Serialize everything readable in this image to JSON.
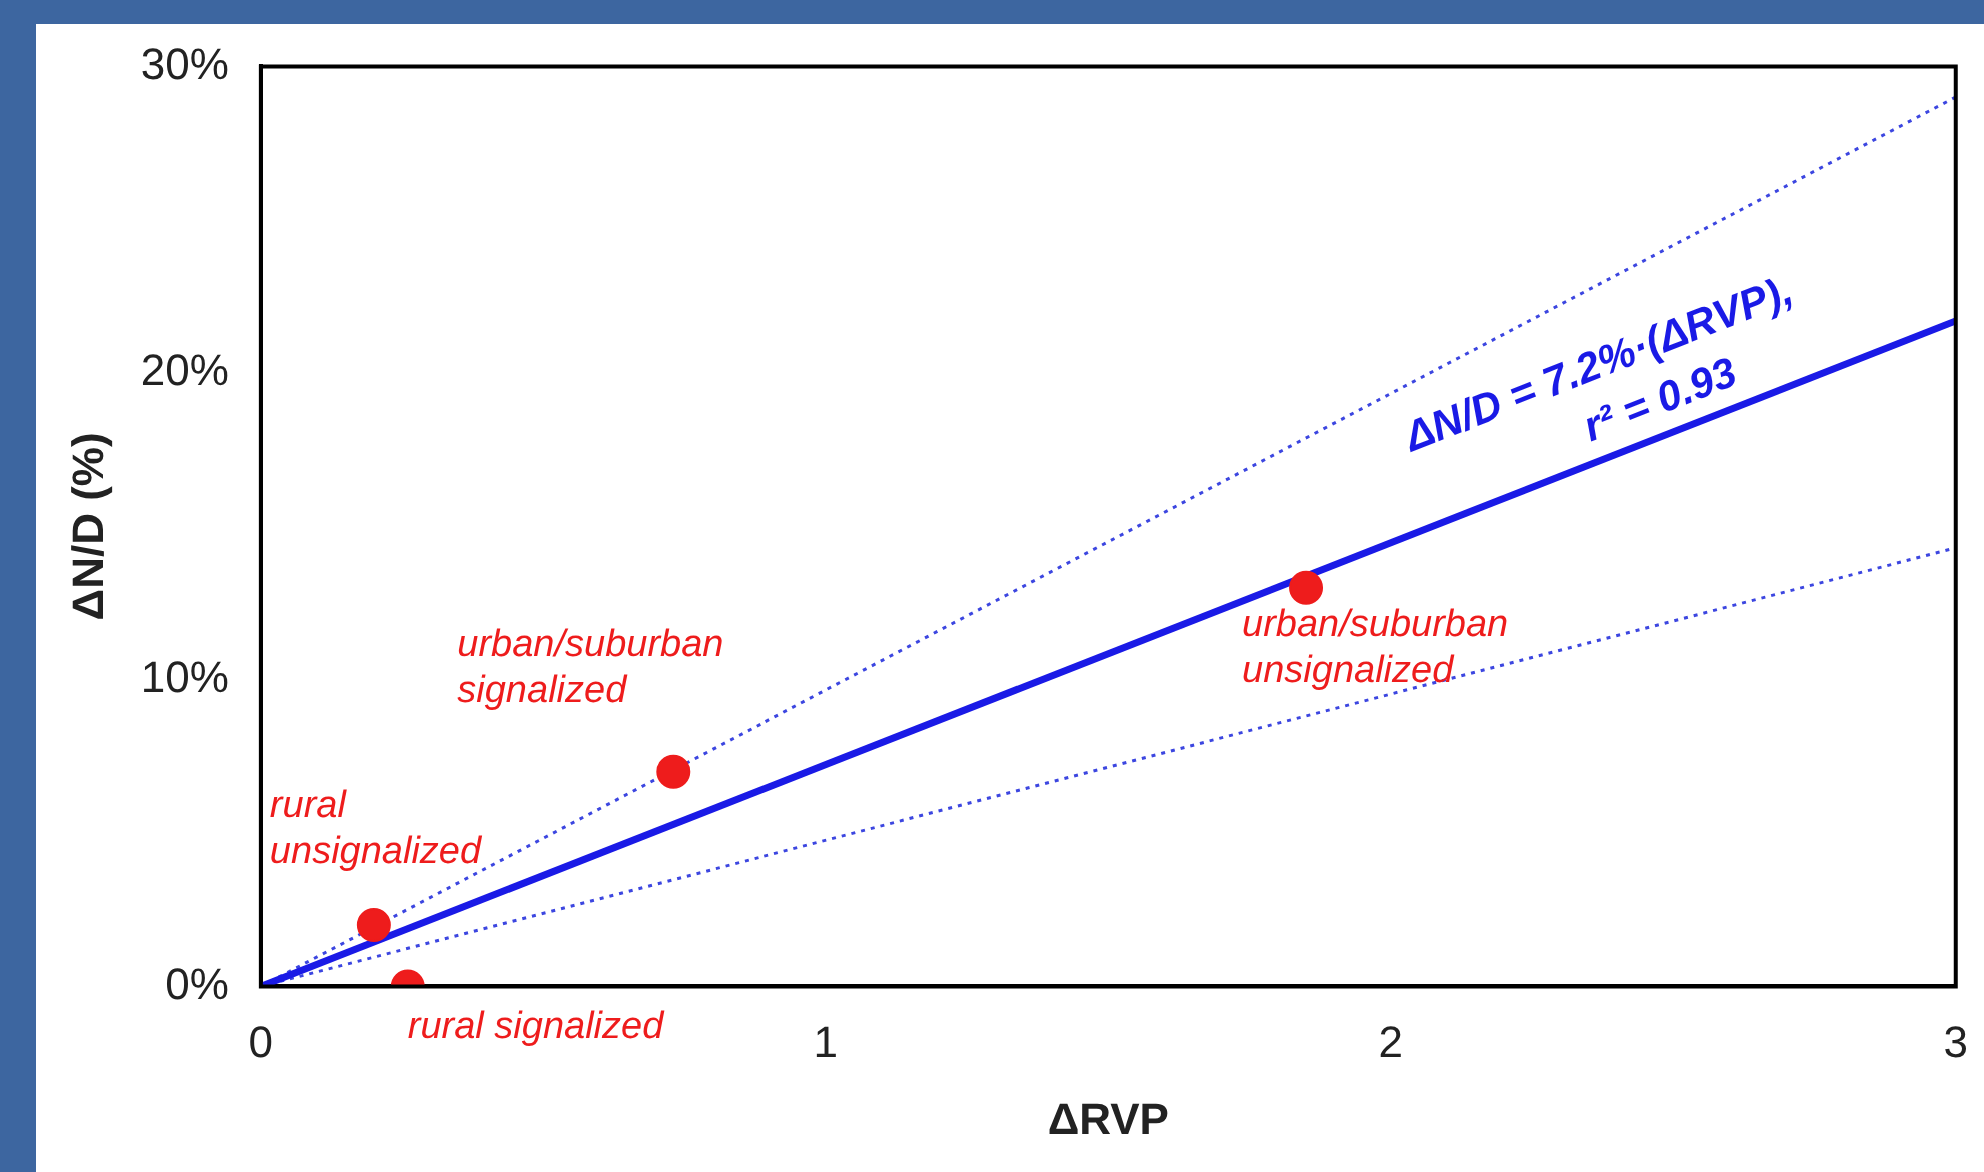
{
  "chart_data": {
    "type": "scatter",
    "xlabel": "ΔRVP",
    "ylabel": "ΔN/D (%)",
    "xlim": [
      0,
      3
    ],
    "xticks": [
      0,
      1,
      2,
      3
    ],
    "ylim": [
      0,
      30
    ],
    "yticks": [
      {
        "value": 0,
        "label": "0%"
      },
      {
        "value": 10,
        "label": "10%"
      },
      {
        "value": 20,
        "label": "20%"
      },
      {
        "value": 30,
        "label": "30%"
      }
    ],
    "grid": false,
    "legend": false,
    "marker": "circle",
    "series": [
      {
        "color": "#ee1c1c",
        "x": [
          0.2,
          0.26,
          0.73,
          1.85
        ],
        "values": [
          2,
          0,
          7,
          13
        ]
      },
      {
        "type": "line",
        "color": "#1a1ae6",
        "line_style": "solid",
        "marker": "none",
        "x": [
          0,
          3
        ],
        "values": [
          0,
          21.7
        ]
      },
      {
        "type": "line",
        "color": "#3c46e0",
        "line_style": "dotted",
        "marker": "none",
        "x": [
          0,
          3
        ],
        "values": [
          0,
          29
        ]
      },
      {
        "type": "line",
        "color": "#3c46e0",
        "line_style": "dotted",
        "marker": "none",
        "x": [
          0,
          3
        ],
        "values": [
          0,
          14.3
        ]
      }
    ],
    "annotations": [
      {
        "text": "rural\nunsignalized",
        "x": 0.2,
        "y": 2
      },
      {
        "text": "rural signalized",
        "x": 0.26,
        "y": 0
      },
      {
        "text": "urban/suburban\nsignalized",
        "x": 0.73,
        "y": 7
      },
      {
        "text": "urban/suburban\nunsignalized",
        "x": 1.85,
        "y": 13
      },
      "ΔN/D = 7.2%·(ΔRVP),\nr² = 0.93"
    ]
  }
}
